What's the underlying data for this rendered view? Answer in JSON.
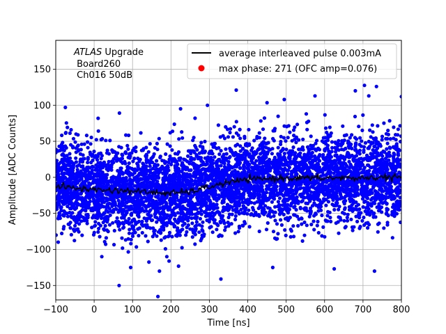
{
  "chart_data": {
    "type": "scatter",
    "xlabel": "Time [ns]",
    "ylabel": "Amplitude [ADC Counts]",
    "xlim": [
      -100,
      800
    ],
    "ylim": [
      -170,
      190
    ],
    "xticks": [
      -100,
      0,
      100,
      200,
      300,
      400,
      500,
      600,
      700,
      800
    ],
    "yticks": [
      -150,
      -100,
      -50,
      0,
      50,
      100,
      150
    ],
    "grid": true,
    "legend_placement": "top-right",
    "annotation": {
      "line1_italic": "ATLAS",
      "line1_rest": " Upgrade",
      "line2": " Board260",
      "line3": " Ch016 50dB"
    },
    "series": [
      {
        "name": "average interleaved pulse 0.003mA",
        "kind": "line",
        "color": "#000000",
        "x": [
          -100,
          -50,
          0,
          50,
          100,
          150,
          200,
          250,
          300,
          350,
          400,
          450,
          500,
          550,
          600,
          650,
          700,
          750,
          800
        ],
        "y": [
          -12,
          -15,
          -17,
          -18,
          -19,
          -21,
          -22,
          -20,
          -13,
          -7,
          -3,
          -2,
          -1,
          -1,
          -1,
          -1,
          -1,
          0,
          0
        ]
      },
      {
        "name": "max phase: 271 (OFC amp=0.076)",
        "kind": "scatter",
        "color": "#0000ff",
        "legend_marker_color": "#ff0000",
        "noise_sigma": 30,
        "x_range": [
          -100,
          800
        ],
        "outliers": [
          {
            "x": 65,
            "y": -150
          },
          {
            "x": 330,
            "y": -141
          },
          {
            "x": 625,
            "y": -127
          },
          {
            "x": 730,
            "y": -130
          },
          {
            "x": 735,
            "y": 126
          },
          {
            "x": 370,
            "y": 121
          },
          {
            "x": 800,
            "y": 112
          },
          {
            "x": 575,
            "y": 113
          },
          {
            "x": -75,
            "y": 97
          },
          {
            "x": 295,
            "y": 100
          },
          {
            "x": 95,
            "y": -125
          },
          {
            "x": 20,
            "y": -110
          },
          {
            "x": 170,
            "y": -130
          },
          {
            "x": 465,
            "y": -125
          },
          {
            "x": 680,
            "y": 120
          },
          {
            "x": 715,
            "y": 113
          },
          {
            "x": 495,
            "y": 108
          },
          {
            "x": 225,
            "y": 95
          }
        ]
      }
    ]
  }
}
